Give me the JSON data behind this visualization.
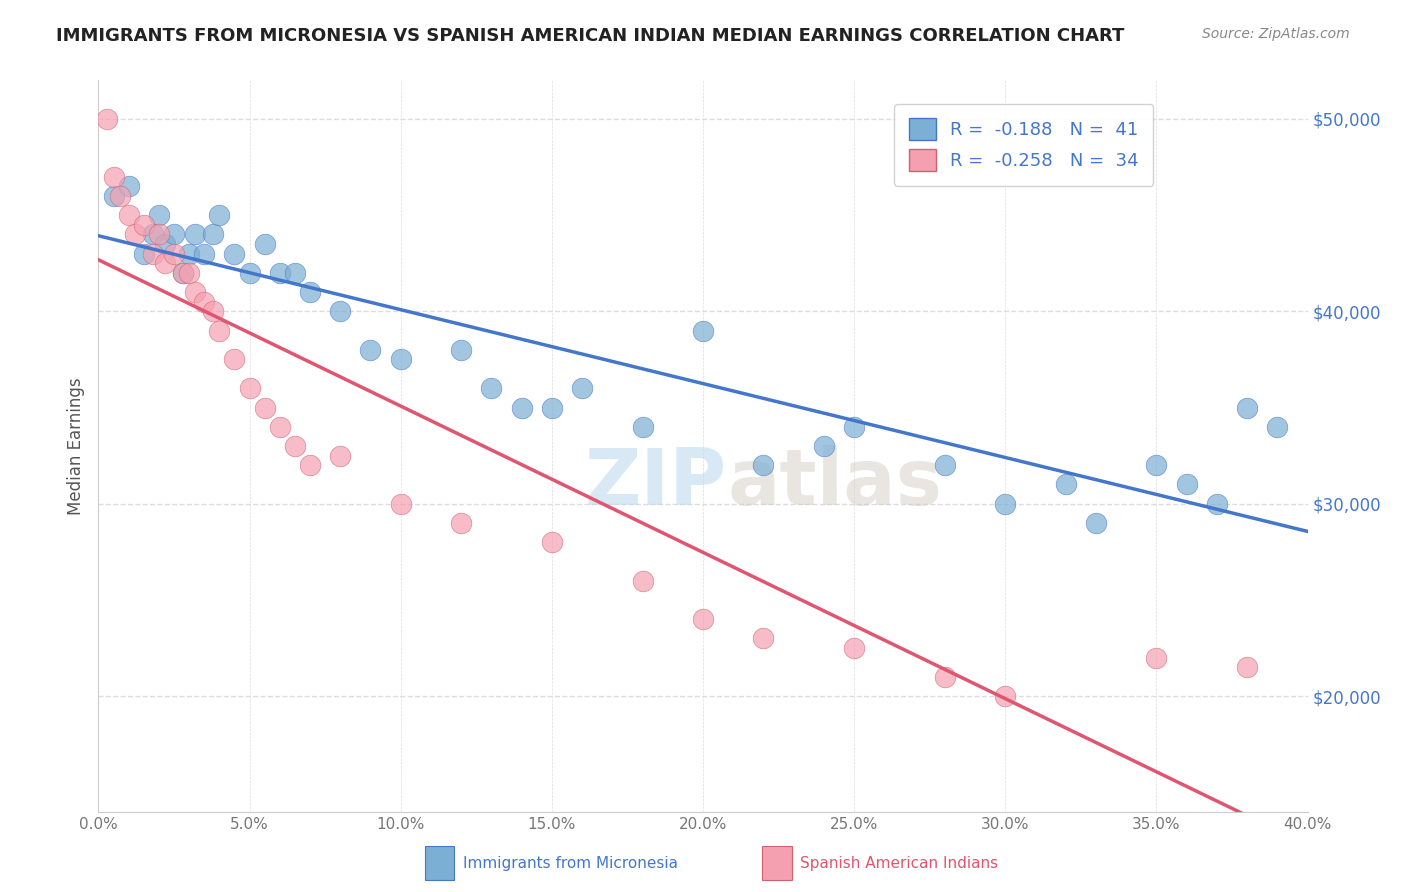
{
  "title": "IMMIGRANTS FROM MICRONESIA VS SPANISH AMERICAN INDIAN MEDIAN EARNINGS CORRELATION CHART",
  "source": "Source: ZipAtlas.com",
  "ylabel": "Median Earnings",
  "legend_labels": [
    "Immigrants from Micronesia",
    "Spanish American Indians"
  ],
  "legend_r": [
    -0.188,
    -0.258
  ],
  "legend_n": [
    41,
    34
  ],
  "blue_color": "#7bafd4",
  "pink_color": "#f4a0b0",
  "trend_blue": "#4477cc",
  "trend_pink": "#e05570",
  "watermark_zip": "ZIP",
  "watermark_atlas": "atlas",
  "xlim": [
    0.0,
    0.4
  ],
  "ylim": [
    14000,
    52000
  ],
  "yticks": [
    20000,
    30000,
    40000,
    50000
  ],
  "xticks": [
    0.0,
    0.05,
    0.1,
    0.15,
    0.2,
    0.25,
    0.3,
    0.35,
    0.4
  ],
  "blue_x": [
    0.005,
    0.01,
    0.015,
    0.018,
    0.02,
    0.022,
    0.025,
    0.028,
    0.03,
    0.032,
    0.035,
    0.038,
    0.04,
    0.045,
    0.05,
    0.055,
    0.06,
    0.065,
    0.07,
    0.08,
    0.09,
    0.1,
    0.12,
    0.13,
    0.14,
    0.15,
    0.16,
    0.18,
    0.2,
    0.22,
    0.24,
    0.25,
    0.28,
    0.3,
    0.32,
    0.35,
    0.36,
    0.37,
    0.38,
    0.39,
    0.33
  ],
  "blue_y": [
    46000,
    46500,
    43000,
    44000,
    45000,
    43500,
    44000,
    42000,
    43000,
    44000,
    43000,
    44000,
    45000,
    43000,
    42000,
    43500,
    42000,
    42000,
    41000,
    40000,
    38000,
    37500,
    38000,
    36000,
    35000,
    35000,
    36000,
    34000,
    39000,
    32000,
    33000,
    34000,
    32000,
    30000,
    31000,
    32000,
    31000,
    30000,
    35000,
    34000,
    29000
  ],
  "pink_x": [
    0.003,
    0.005,
    0.007,
    0.01,
    0.012,
    0.015,
    0.018,
    0.02,
    0.022,
    0.025,
    0.028,
    0.03,
    0.032,
    0.035,
    0.038,
    0.04,
    0.045,
    0.05,
    0.055,
    0.06,
    0.065,
    0.07,
    0.08,
    0.1,
    0.12,
    0.15,
    0.18,
    0.2,
    0.22,
    0.25,
    0.28,
    0.3,
    0.35,
    0.38
  ],
  "pink_y": [
    50000,
    47000,
    46000,
    45000,
    44000,
    44500,
    43000,
    44000,
    42500,
    43000,
    42000,
    42000,
    41000,
    40500,
    40000,
    39000,
    37500,
    36000,
    35000,
    34000,
    33000,
    32000,
    32500,
    30000,
    29000,
    28000,
    26000,
    24000,
    23000,
    22500,
    21000,
    20000,
    22000,
    21500
  ]
}
